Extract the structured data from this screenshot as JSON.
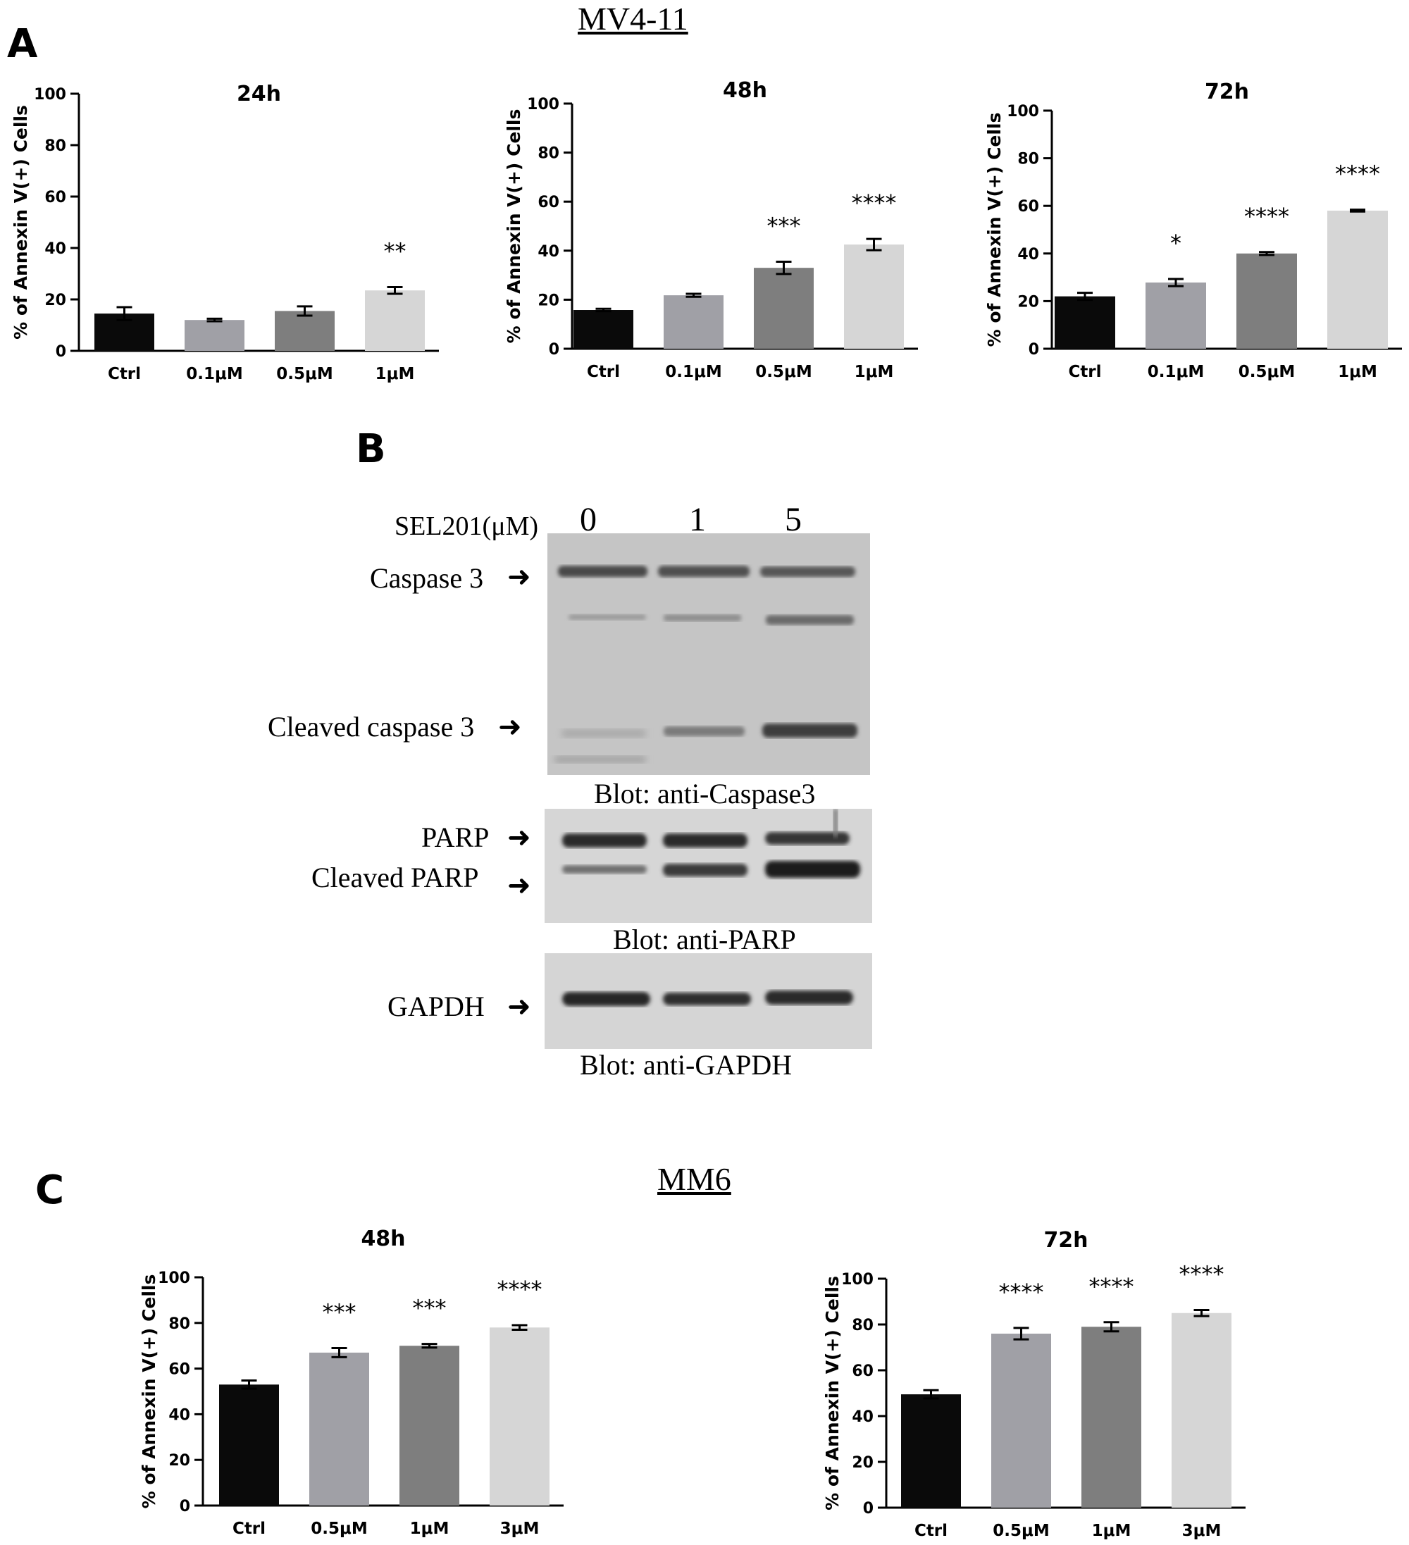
{
  "panels": {
    "a": {
      "letter": "A",
      "title": "MV4-11"
    },
    "b": {
      "letter": "B"
    },
    "c": {
      "letter": "C",
      "title": "MM6"
    }
  },
  "blot": {
    "treatment_label": "SEL201(μM)",
    "lanes": [
      "0",
      "1",
      "5"
    ],
    "caspase3_label": "Caspase 3",
    "cleaved_caspase3_label": "Cleaved caspase 3",
    "caspase3_caption": "Blot: anti-Caspase3",
    "parp_label": "PARP",
    "cleaved_parp_label": "Cleaved PARP",
    "parp_caption": "Blot: anti-PARP",
    "gapdh_label": "GAPDH",
    "gapdh_caption": "Blot: anti-GAPDH"
  },
  "chart_data": [
    {
      "type": "bar",
      "panel": "A",
      "title": "24h",
      "ylabel": "% of Annexin V(+) Cells",
      "ylim": [
        0,
        100
      ],
      "yticks": [
        "0",
        "20",
        "40",
        "60",
        "80",
        "100"
      ],
      "categories": [
        "Ctrl",
        "0.1μM",
        "0.5μM",
        "1μM"
      ],
      "values": [
        14.5,
        12,
        15.5,
        23.5
      ],
      "errors": [
        2.5,
        0.5,
        1.8,
        1.3
      ],
      "significance": [
        "",
        "",
        "",
        "**"
      ],
      "colors": [
        "#0a0a0a",
        "#a0a0a6",
        "#7e7e7e",
        "#d6d6d6"
      ]
    },
    {
      "type": "bar",
      "panel": "A",
      "title": "48h",
      "ylabel": "% of Annexin V(+) Cells",
      "ylim": [
        0,
        100
      ],
      "yticks": [
        "0",
        "20",
        "40",
        "60",
        "80",
        "100"
      ],
      "categories": [
        "Ctrl",
        "0.1μM",
        "0.5μM",
        "1μM"
      ],
      "values": [
        15.8,
        21.8,
        33,
        42.5
      ],
      "errors": [
        0.5,
        0.6,
        2.5,
        2.3
      ],
      "significance": [
        "",
        "",
        "***",
        "****"
      ],
      "colors": [
        "#0a0a0a",
        "#a0a0a6",
        "#7e7e7e",
        "#d6d6d6"
      ]
    },
    {
      "type": "bar",
      "panel": "A",
      "title": "72h",
      "ylabel": "% of Annexin V(+) Cells",
      "ylim": [
        0,
        100
      ],
      "yticks": [
        "0",
        "20",
        "40",
        "60",
        "80",
        "100"
      ],
      "categories": [
        "Ctrl",
        "0.1μM",
        "0.5μM",
        "1μM"
      ],
      "values": [
        22,
        27.8,
        40,
        58
      ],
      "errors": [
        1.5,
        1.5,
        0.6,
        0.4
      ],
      "significance": [
        "",
        "*",
        "****",
        "****"
      ],
      "colors": [
        "#0a0a0a",
        "#a0a0a6",
        "#7e7e7e",
        "#d6d6d6"
      ]
    },
    {
      "type": "bar",
      "panel": "C",
      "title": "48h",
      "ylabel": "% of Annexin V(+) Cells",
      "ylim": [
        0,
        100
      ],
      "yticks": [
        "0",
        "20",
        "40",
        "60",
        "80",
        "100"
      ],
      "categories": [
        "Ctrl",
        "0.5μM",
        "1μM",
        "3μM"
      ],
      "values": [
        53,
        67,
        70,
        78
      ],
      "errors": [
        1.8,
        2,
        0.8,
        1
      ],
      "significance": [
        "",
        "***",
        "***",
        "****"
      ],
      "colors": [
        "#0a0a0a",
        "#a0a0a6",
        "#7e7e7e",
        "#d6d6d6"
      ]
    },
    {
      "type": "bar",
      "panel": "C",
      "title": "72h",
      "ylabel": "% of Annexin V(+) Cells",
      "ylim": [
        0,
        100
      ],
      "yticks": [
        "0",
        "20",
        "40",
        "60",
        "80",
        "100"
      ],
      "categories": [
        "Ctrl",
        "0.5μM",
        "1μM",
        "3μM"
      ],
      "values": [
        49.5,
        76,
        79,
        85
      ],
      "errors": [
        1.8,
        2.5,
        2,
        1.3
      ],
      "significance": [
        "",
        "****",
        "****",
        "****"
      ],
      "colors": [
        "#0a0a0a",
        "#a0a0a6",
        "#7e7e7e",
        "#d6d6d6"
      ]
    }
  ]
}
